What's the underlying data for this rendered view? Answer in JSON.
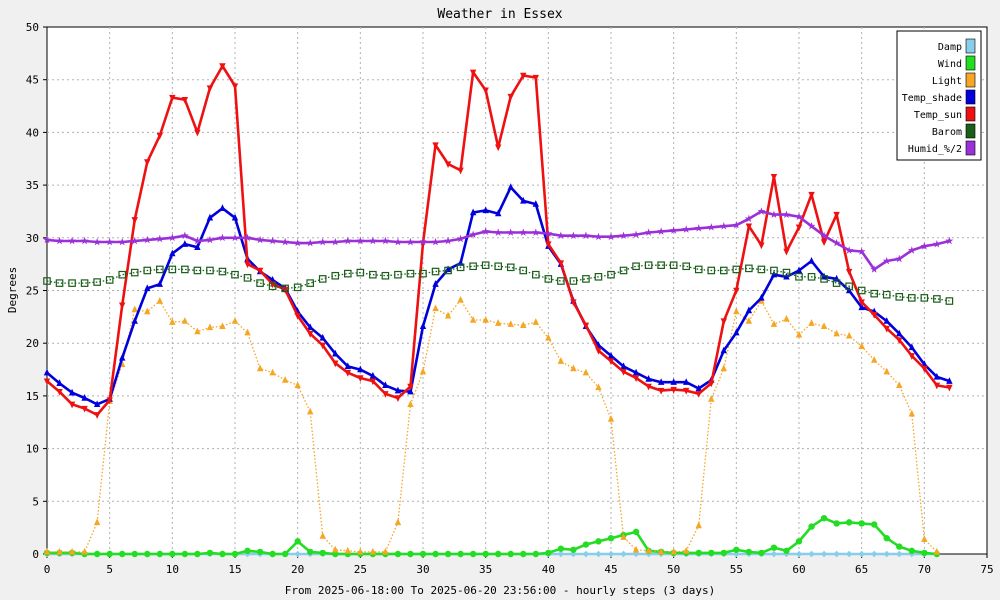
{
  "chart_data": {
    "type": "line",
    "title": "Weather in Essex",
    "xlabel": "From 2025-06-18:00 To 2025-06-20 23:56:00 - hourly steps (3 days)",
    "ylabel": "Degrees",
    "xlim": [
      0,
      75
    ],
    "ylim": [
      0,
      50
    ],
    "xticks": [
      0,
      5,
      10,
      15,
      20,
      25,
      30,
      35,
      40,
      45,
      50,
      55,
      60,
      65,
      70,
      75
    ],
    "yticks": [
      0,
      5,
      10,
      15,
      20,
      25,
      30,
      35,
      40,
      45,
      50
    ],
    "grid": true,
    "legend_position": "top-right",
    "series": [
      {
        "name": "Damp",
        "color": "#87ceeb",
        "marker": "diamond",
        "line": "solid",
        "values": [
          0,
          0,
          0,
          0,
          0,
          0,
          0,
          0,
          0,
          0,
          0,
          0,
          0,
          0,
          0,
          0,
          0,
          0,
          0,
          0,
          0,
          0,
          0,
          0,
          0,
          0,
          0,
          0,
          0,
          0,
          0,
          0,
          0,
          0,
          0,
          0,
          0,
          0,
          0,
          0,
          0,
          0,
          0,
          0,
          0,
          0,
          0,
          0,
          0,
          0,
          0,
          0,
          0,
          0,
          0,
          0,
          0,
          0,
          0,
          0,
          0,
          0,
          0,
          0,
          0,
          0,
          0,
          0,
          0,
          0,
          0,
          0
        ]
      },
      {
        "name": "Wind",
        "color": "#22dd22",
        "marker": "circle",
        "line": "solid",
        "values": [
          0.1,
          0.1,
          0.1,
          0,
          0,
          0,
          0,
          0,
          0,
          0,
          0,
          0,
          0,
          0.1,
          0,
          0,
          0.3,
          0.2,
          0,
          0,
          1.2,
          0.2,
          0.1,
          0,
          0,
          0,
          0,
          0,
          0,
          0,
          0,
          0,
          0,
          0,
          0,
          0,
          0,
          0,
          0,
          0,
          0.1,
          0.5,
          0.4,
          0.9,
          1.2,
          1.5,
          1.8,
          2.1,
          0.3,
          0.2,
          0.1,
          0.1,
          0.1,
          0.1,
          0.1,
          0.4,
          0.2,
          0.1,
          0.6,
          0.3,
          1.2,
          2.6,
          3.4,
          2.9,
          3,
          2.9,
          2.8,
          1.5,
          0.7,
          0.3,
          0.1,
          0
        ]
      },
      {
        "name": "Light",
        "color": "#f5a623",
        "marker": "triangle",
        "line": "dotted",
        "values": [
          0.2,
          0.2,
          0.2,
          0.2,
          3,
          14.5,
          18,
          23.2,
          23,
          24,
          22,
          22.1,
          21.1,
          21.5,
          21.6,
          22.1,
          21,
          17.6,
          17.2,
          16.5,
          16,
          13.5,
          1.7,
          0.4,
          0.3,
          0.2,
          0.2,
          0.2,
          3,
          14.2,
          17.3,
          23.3,
          22.6,
          24.1,
          22.2,
          22.2,
          21.9,
          21.8,
          21.7,
          22,
          20.5,
          18.3,
          17.6,
          17.2,
          15.8,
          12.8,
          1.6,
          0.4,
          0.3,
          0.2,
          0.2,
          0.3,
          2.7,
          14.7,
          17.6,
          23,
          22.1,
          24,
          21.8,
          22.3,
          20.8,
          21.9,
          21.6,
          20.9,
          20.7,
          19.7,
          18.4,
          17.3,
          16,
          13.3,
          1.4,
          0.2
        ]
      },
      {
        "name": "Temp_shade",
        "color": "#0000dd",
        "marker": "triangle",
        "line": "solid",
        "values": [
          17.2,
          16.2,
          15.3,
          14.8,
          14.2,
          14.7,
          18.6,
          22.1,
          25.2,
          25.6,
          28.5,
          29.4,
          29.1,
          31.9,
          32.8,
          31.9,
          28,
          26.8,
          26,
          25.2,
          23,
          21.5,
          20.5,
          19,
          17.8,
          17.5,
          16.9,
          16,
          15.5,
          15.4,
          21.6,
          25.6,
          27,
          27.6,
          32.4,
          32.6,
          32.3,
          34.8,
          33.5,
          33.2,
          29.2,
          27.5,
          24,
          21.6,
          19.8,
          18.8,
          17.8,
          17.2,
          16.6,
          16.3,
          16.3,
          16.3,
          15.7,
          16.5,
          19.3,
          21,
          23.1,
          24.3,
          26.5,
          26.3,
          26.9,
          27.8,
          26.3,
          26.1,
          25,
          23.4,
          23,
          22.1,
          20.9,
          19.6,
          18,
          16.8,
          16.4
        ]
      },
      {
        "name": "Temp_sun",
        "color": "#ee1111",
        "marker": "triangle-down",
        "line": "solid",
        "values": [
          16.4,
          15.4,
          14.2,
          13.8,
          13.2,
          14.6,
          23.6,
          31.7,
          37.2,
          39.7,
          43.3,
          43.1,
          40,
          44.2,
          46.3,
          44.4,
          27.5,
          26.9,
          25.6,
          25.1,
          22.6,
          20.9,
          19.8,
          18.1,
          17.2,
          16.7,
          16.4,
          15.2,
          14.8,
          15.9,
          29.5,
          38.8,
          37,
          36.4,
          45.7,
          44,
          38.6,
          43.4,
          45.4,
          45.2,
          29.4,
          27.6,
          23.9,
          21.7,
          19.3,
          18.3,
          17.3,
          16.7,
          15.9,
          15.5,
          15.6,
          15.5,
          15.2,
          16.2,
          22.1,
          25,
          31.1,
          29.3,
          35.8,
          28.7,
          31,
          34.1,
          29.6,
          32.2,
          26.8,
          23.9,
          22.7,
          21.4,
          20.3,
          18.8,
          17.6,
          16,
          15.8
        ]
      },
      {
        "name": "Barom",
        "color": "#1a5e1a",
        "marker": "square",
        "line": "dotted",
        "values": [
          25.9,
          25.7,
          25.7,
          25.7,
          25.8,
          26,
          26.5,
          26.7,
          26.9,
          27,
          27,
          27,
          26.9,
          26.9,
          26.8,
          26.5,
          26.2,
          25.7,
          25.4,
          25.2,
          25.3,
          25.7,
          26.1,
          26.4,
          26.6,
          26.7,
          26.5,
          26.4,
          26.5,
          26.6,
          26.6,
          26.8,
          26.9,
          27.2,
          27.3,
          27.4,
          27.3,
          27.2,
          26.9,
          26.5,
          26.1,
          25.9,
          25.9,
          26.1,
          26.3,
          26.5,
          26.9,
          27.3,
          27.4,
          27.4,
          27.4,
          27.3,
          27,
          26.9,
          26.9,
          27,
          27.1,
          27,
          26.9,
          26.7,
          26.3,
          26.3,
          26.1,
          25.7,
          25.4,
          25,
          24.7,
          24.6,
          24.4,
          24.3,
          24.3,
          24.2,
          24
        ]
      },
      {
        "name": "Humid_%/2",
        "color": "#9b30d9",
        "marker": "star",
        "line": "solid",
        "values": [
          29.8,
          29.7,
          29.7,
          29.7,
          29.6,
          29.6,
          29.6,
          29.7,
          29.8,
          29.9,
          30,
          30.2,
          29.7,
          29.8,
          30,
          30,
          30,
          29.8,
          29.7,
          29.6,
          29.5,
          29.5,
          29.6,
          29.6,
          29.7,
          29.7,
          29.7,
          29.7,
          29.6,
          29.6,
          29.6,
          29.6,
          29.7,
          29.9,
          30.3,
          30.6,
          30.5,
          30.5,
          30.5,
          30.5,
          30.4,
          30.2,
          30.2,
          30.2,
          30.1,
          30.1,
          30.2,
          30.3,
          30.5,
          30.6,
          30.7,
          30.8,
          30.9,
          31,
          31.1,
          31.2,
          31.8,
          32.5,
          32.2,
          32.2,
          32,
          31.1,
          30.2,
          29.5,
          28.8,
          28.7,
          27,
          27.8,
          28,
          28.8,
          29.2,
          29.4,
          29.7
        ]
      }
    ]
  }
}
